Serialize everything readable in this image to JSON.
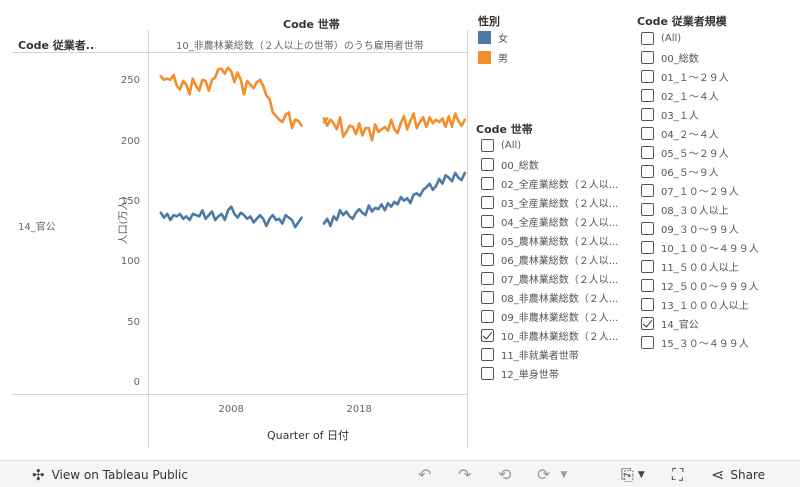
{
  "header": {
    "column_header": "Code 世帯",
    "row_header": "Code 従業者..",
    "column_value": "10_非農林業総数（２人以上の世帯）のうち雇用者世帯",
    "row_value": "14_官公"
  },
  "chart_data": {
    "type": "line",
    "xlabel": "Quarter of 日付",
    "ylabel": "人口(万人)",
    "x_ticks": [
      "2008",
      "2018"
    ],
    "y_ticks": [
      0,
      50,
      100,
      150,
      200,
      250
    ],
    "ylim": [
      -8,
      275
    ],
    "xlim": [
      2002.0,
      2027.0
    ],
    "grid": false,
    "colors": {
      "女": "#4e79a7",
      "男": "#f28e2b"
    },
    "series": [
      {
        "name": "男",
        "segments": [
          {
            "start": 2003.0,
            "step": 0.25,
            "values": [
              255,
              252,
              253,
              252,
              256,
              247,
              244,
              251,
              248,
              240,
              253,
              247,
              243,
              252,
              251,
              243,
              252,
              254,
              261,
              261,
              257,
              262,
              259,
              250,
              258,
              252,
              240,
              251,
              248,
              245,
              250,
              252,
              247,
              239,
              236,
              225,
              222,
              219,
              217,
              223,
              225,
              212,
              219,
              218,
              214
            ]
          },
          {
            "start": 2015.75,
            "step": 0.25,
            "values": [
              217,
              220
            ]
          },
          {
            "start": 2015.75,
            "step": 0.25,
            "values": []
          },
          {
            "start": 2015.5,
            "step": 0.25,
            "values": []
          }
        ]
      },
      {
        "name": "女",
        "segments": [
          {
            "start": 2003.0,
            "step": 0.25,
            "values": [
              142,
              138,
              141,
              136,
              140,
              139,
              141,
              137,
              139,
              136,
              141,
              140,
              139,
              144,
              137,
              140,
              143,
              136,
              139,
              141,
              136,
              144,
              147,
              141,
              138,
              142,
              140,
              137,
              139,
              134,
              137,
              140,
              137,
              131,
              137,
              140,
              136,
              137,
              133,
              140,
              138,
              136,
              130,
              134,
              138
            ]
          }
        ]
      }
    ]
  },
  "legend_gender": {
    "title": "性別",
    "items": [
      {
        "label": "女",
        "color": "#4e79a7"
      },
      {
        "label": "男",
        "color": "#f28e2b"
      }
    ]
  },
  "filter_household": {
    "title": "Code 世帯",
    "items": [
      {
        "label": "(All)",
        "checked": false
      },
      {
        "label": "00_総数",
        "checked": false
      },
      {
        "label": "02_全産業総数（２人以...",
        "checked": false
      },
      {
        "label": "03_全産業総数（２人以...",
        "checked": false
      },
      {
        "label": "04_全産業総数（２人以...",
        "checked": false
      },
      {
        "label": "05_農林業総数（２人以...",
        "checked": false
      },
      {
        "label": "06_農林業総数（２人以...",
        "checked": false
      },
      {
        "label": "07_農林業総数（２人以...",
        "checked": false
      },
      {
        "label": "08_非農林業総数（２人...",
        "checked": false
      },
      {
        "label": "09_非農林業総数（２人...",
        "checked": false
      },
      {
        "label": "10_非農林業総数（２人...",
        "checked": true
      },
      {
        "label": "11_非就業者世帯",
        "checked": false
      },
      {
        "label": "12_単身世帯",
        "checked": false
      }
    ]
  },
  "filter_employees": {
    "title": "Code 従業者規模",
    "items": [
      {
        "label": "(All)",
        "checked": false
      },
      {
        "label": "00_総数",
        "checked": false
      },
      {
        "label": "01_１～２９人",
        "checked": false
      },
      {
        "label": "02_１～４人",
        "checked": false
      },
      {
        "label": "03_１人",
        "checked": false
      },
      {
        "label": "04_２～４人",
        "checked": false
      },
      {
        "label": "05_５～２９人",
        "checked": false
      },
      {
        "label": "06_５～９人",
        "checked": false
      },
      {
        "label": "07_１０～２９人",
        "checked": false
      },
      {
        "label": "08_３０人以上",
        "checked": false
      },
      {
        "label": "09_３０～９９人",
        "checked": false
      },
      {
        "label": "10_１００～４９９人",
        "checked": false
      },
      {
        "label": "11_５００人以上",
        "checked": false
      },
      {
        "label": "12_５００～９９９人",
        "checked": false
      },
      {
        "label": "13_１０００人以上",
        "checked": false
      },
      {
        "label": "14_官公",
        "checked": true
      },
      {
        "label": "15_３０～４９９人",
        "checked": false
      }
    ]
  },
  "toolbar": {
    "view_label": "View on Tableau Public",
    "share_label": "Share",
    "icons": [
      "tableau-logo-icon",
      "undo-icon",
      "redo-icon",
      "revert-icon",
      "refresh-icon",
      "download-icon",
      "fullscreen-icon",
      "share-icon"
    ]
  }
}
